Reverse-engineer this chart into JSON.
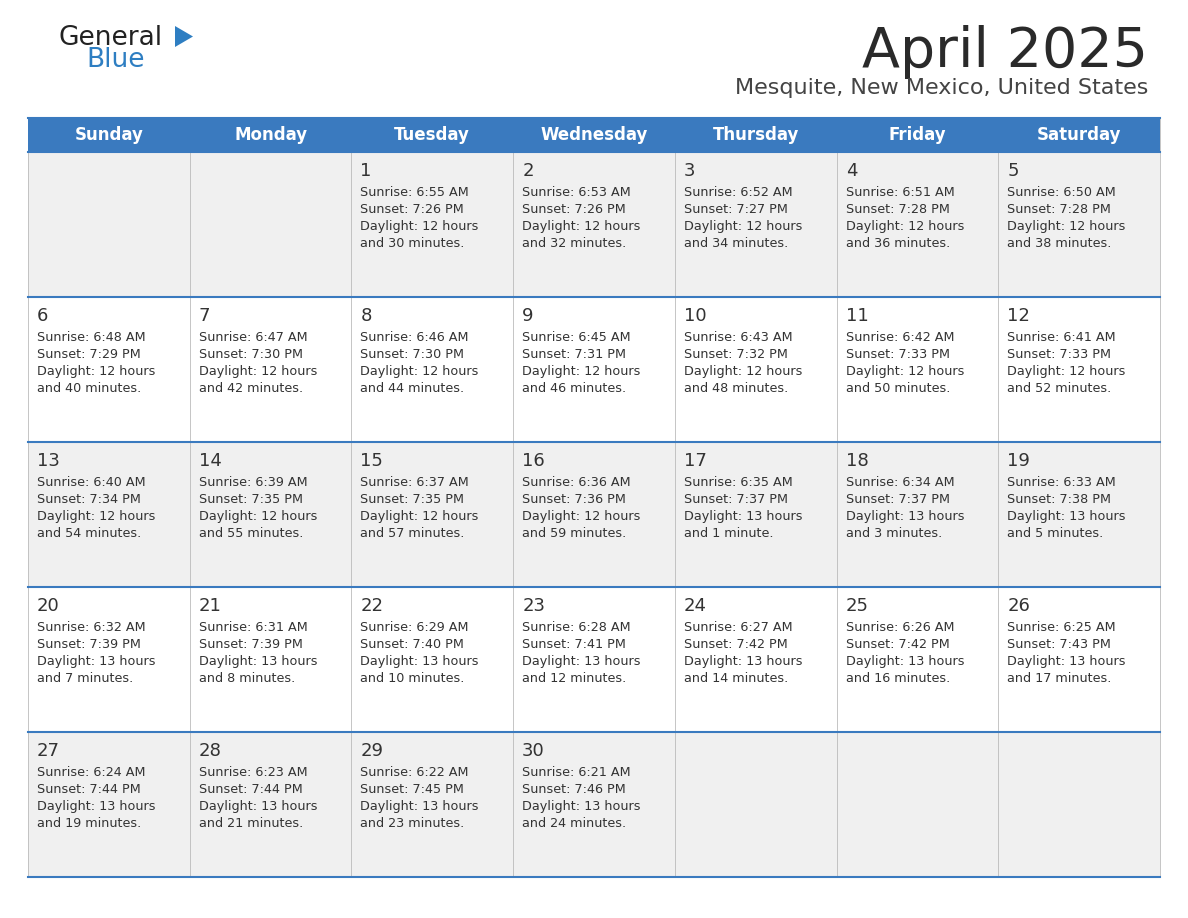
{
  "title": "April 2025",
  "subtitle": "Mesquite, New Mexico, United States",
  "header_bg_color": "#3a7abf",
  "header_text_color": "#ffffff",
  "day_names": [
    "Sunday",
    "Monday",
    "Tuesday",
    "Wednesday",
    "Thursday",
    "Friday",
    "Saturday"
  ],
  "odd_row_bg": "#f0f0f0",
  "even_row_bg": "#ffffff",
  "cell_text_color": "#333333",
  "title_color": "#2a2a2a",
  "subtitle_color": "#444444",
  "logo_general_color": "#222222",
  "logo_blue_color": "#2e7ec2",
  "divider_color": "#3a7abf",
  "calendar": [
    [
      {
        "day": "",
        "sunrise": "",
        "sunset": "",
        "daylight": ""
      },
      {
        "day": "",
        "sunrise": "",
        "sunset": "",
        "daylight": ""
      },
      {
        "day": "1",
        "sunrise": "6:55 AM",
        "sunset": "7:26 PM",
        "daylight": "12 hours and 30 minutes."
      },
      {
        "day": "2",
        "sunrise": "6:53 AM",
        "sunset": "7:26 PM",
        "daylight": "12 hours and 32 minutes."
      },
      {
        "day": "3",
        "sunrise": "6:52 AM",
        "sunset": "7:27 PM",
        "daylight": "12 hours and 34 minutes."
      },
      {
        "day": "4",
        "sunrise": "6:51 AM",
        "sunset": "7:28 PM",
        "daylight": "12 hours and 36 minutes."
      },
      {
        "day": "5",
        "sunrise": "6:50 AM",
        "sunset": "7:28 PM",
        "daylight": "12 hours and 38 minutes."
      }
    ],
    [
      {
        "day": "6",
        "sunrise": "6:48 AM",
        "sunset": "7:29 PM",
        "daylight": "12 hours and 40 minutes."
      },
      {
        "day": "7",
        "sunrise": "6:47 AM",
        "sunset": "7:30 PM",
        "daylight": "12 hours and 42 minutes."
      },
      {
        "day": "8",
        "sunrise": "6:46 AM",
        "sunset": "7:30 PM",
        "daylight": "12 hours and 44 minutes."
      },
      {
        "day": "9",
        "sunrise": "6:45 AM",
        "sunset": "7:31 PM",
        "daylight": "12 hours and 46 minutes."
      },
      {
        "day": "10",
        "sunrise": "6:43 AM",
        "sunset": "7:32 PM",
        "daylight": "12 hours and 48 minutes."
      },
      {
        "day": "11",
        "sunrise": "6:42 AM",
        "sunset": "7:33 PM",
        "daylight": "12 hours and 50 minutes."
      },
      {
        "day": "12",
        "sunrise": "6:41 AM",
        "sunset": "7:33 PM",
        "daylight": "12 hours and 52 minutes."
      }
    ],
    [
      {
        "day": "13",
        "sunrise": "6:40 AM",
        "sunset": "7:34 PM",
        "daylight": "12 hours and 54 minutes."
      },
      {
        "day": "14",
        "sunrise": "6:39 AM",
        "sunset": "7:35 PM",
        "daylight": "12 hours and 55 minutes."
      },
      {
        "day": "15",
        "sunrise": "6:37 AM",
        "sunset": "7:35 PM",
        "daylight": "12 hours and 57 minutes."
      },
      {
        "day": "16",
        "sunrise": "6:36 AM",
        "sunset": "7:36 PM",
        "daylight": "12 hours and 59 minutes."
      },
      {
        "day": "17",
        "sunrise": "6:35 AM",
        "sunset": "7:37 PM",
        "daylight": "13 hours and 1 minute."
      },
      {
        "day": "18",
        "sunrise": "6:34 AM",
        "sunset": "7:37 PM",
        "daylight": "13 hours and 3 minutes."
      },
      {
        "day": "19",
        "sunrise": "6:33 AM",
        "sunset": "7:38 PM",
        "daylight": "13 hours and 5 minutes."
      }
    ],
    [
      {
        "day": "20",
        "sunrise": "6:32 AM",
        "sunset": "7:39 PM",
        "daylight": "13 hours and 7 minutes."
      },
      {
        "day": "21",
        "sunrise": "6:31 AM",
        "sunset": "7:39 PM",
        "daylight": "13 hours and 8 minutes."
      },
      {
        "day": "22",
        "sunrise": "6:29 AM",
        "sunset": "7:40 PM",
        "daylight": "13 hours and 10 minutes."
      },
      {
        "day": "23",
        "sunrise": "6:28 AM",
        "sunset": "7:41 PM",
        "daylight": "13 hours and 12 minutes."
      },
      {
        "day": "24",
        "sunrise": "6:27 AM",
        "sunset": "7:42 PM",
        "daylight": "13 hours and 14 minutes."
      },
      {
        "day": "25",
        "sunrise": "6:26 AM",
        "sunset": "7:42 PM",
        "daylight": "13 hours and 16 minutes."
      },
      {
        "day": "26",
        "sunrise": "6:25 AM",
        "sunset": "7:43 PM",
        "daylight": "13 hours and 17 minutes."
      }
    ],
    [
      {
        "day": "27",
        "sunrise": "6:24 AM",
        "sunset": "7:44 PM",
        "daylight": "13 hours and 19 minutes."
      },
      {
        "day": "28",
        "sunrise": "6:23 AM",
        "sunset": "7:44 PM",
        "daylight": "13 hours and 21 minutes."
      },
      {
        "day": "29",
        "sunrise": "6:22 AM",
        "sunset": "7:45 PM",
        "daylight": "13 hours and 23 minutes."
      },
      {
        "day": "30",
        "sunrise": "6:21 AM",
        "sunset": "7:46 PM",
        "daylight": "13 hours and 24 minutes."
      },
      {
        "day": "",
        "sunrise": "",
        "sunset": "",
        "daylight": ""
      },
      {
        "day": "",
        "sunrise": "",
        "sunset": "",
        "daylight": ""
      },
      {
        "day": "",
        "sunrise": "",
        "sunset": "",
        "daylight": ""
      }
    ]
  ]
}
